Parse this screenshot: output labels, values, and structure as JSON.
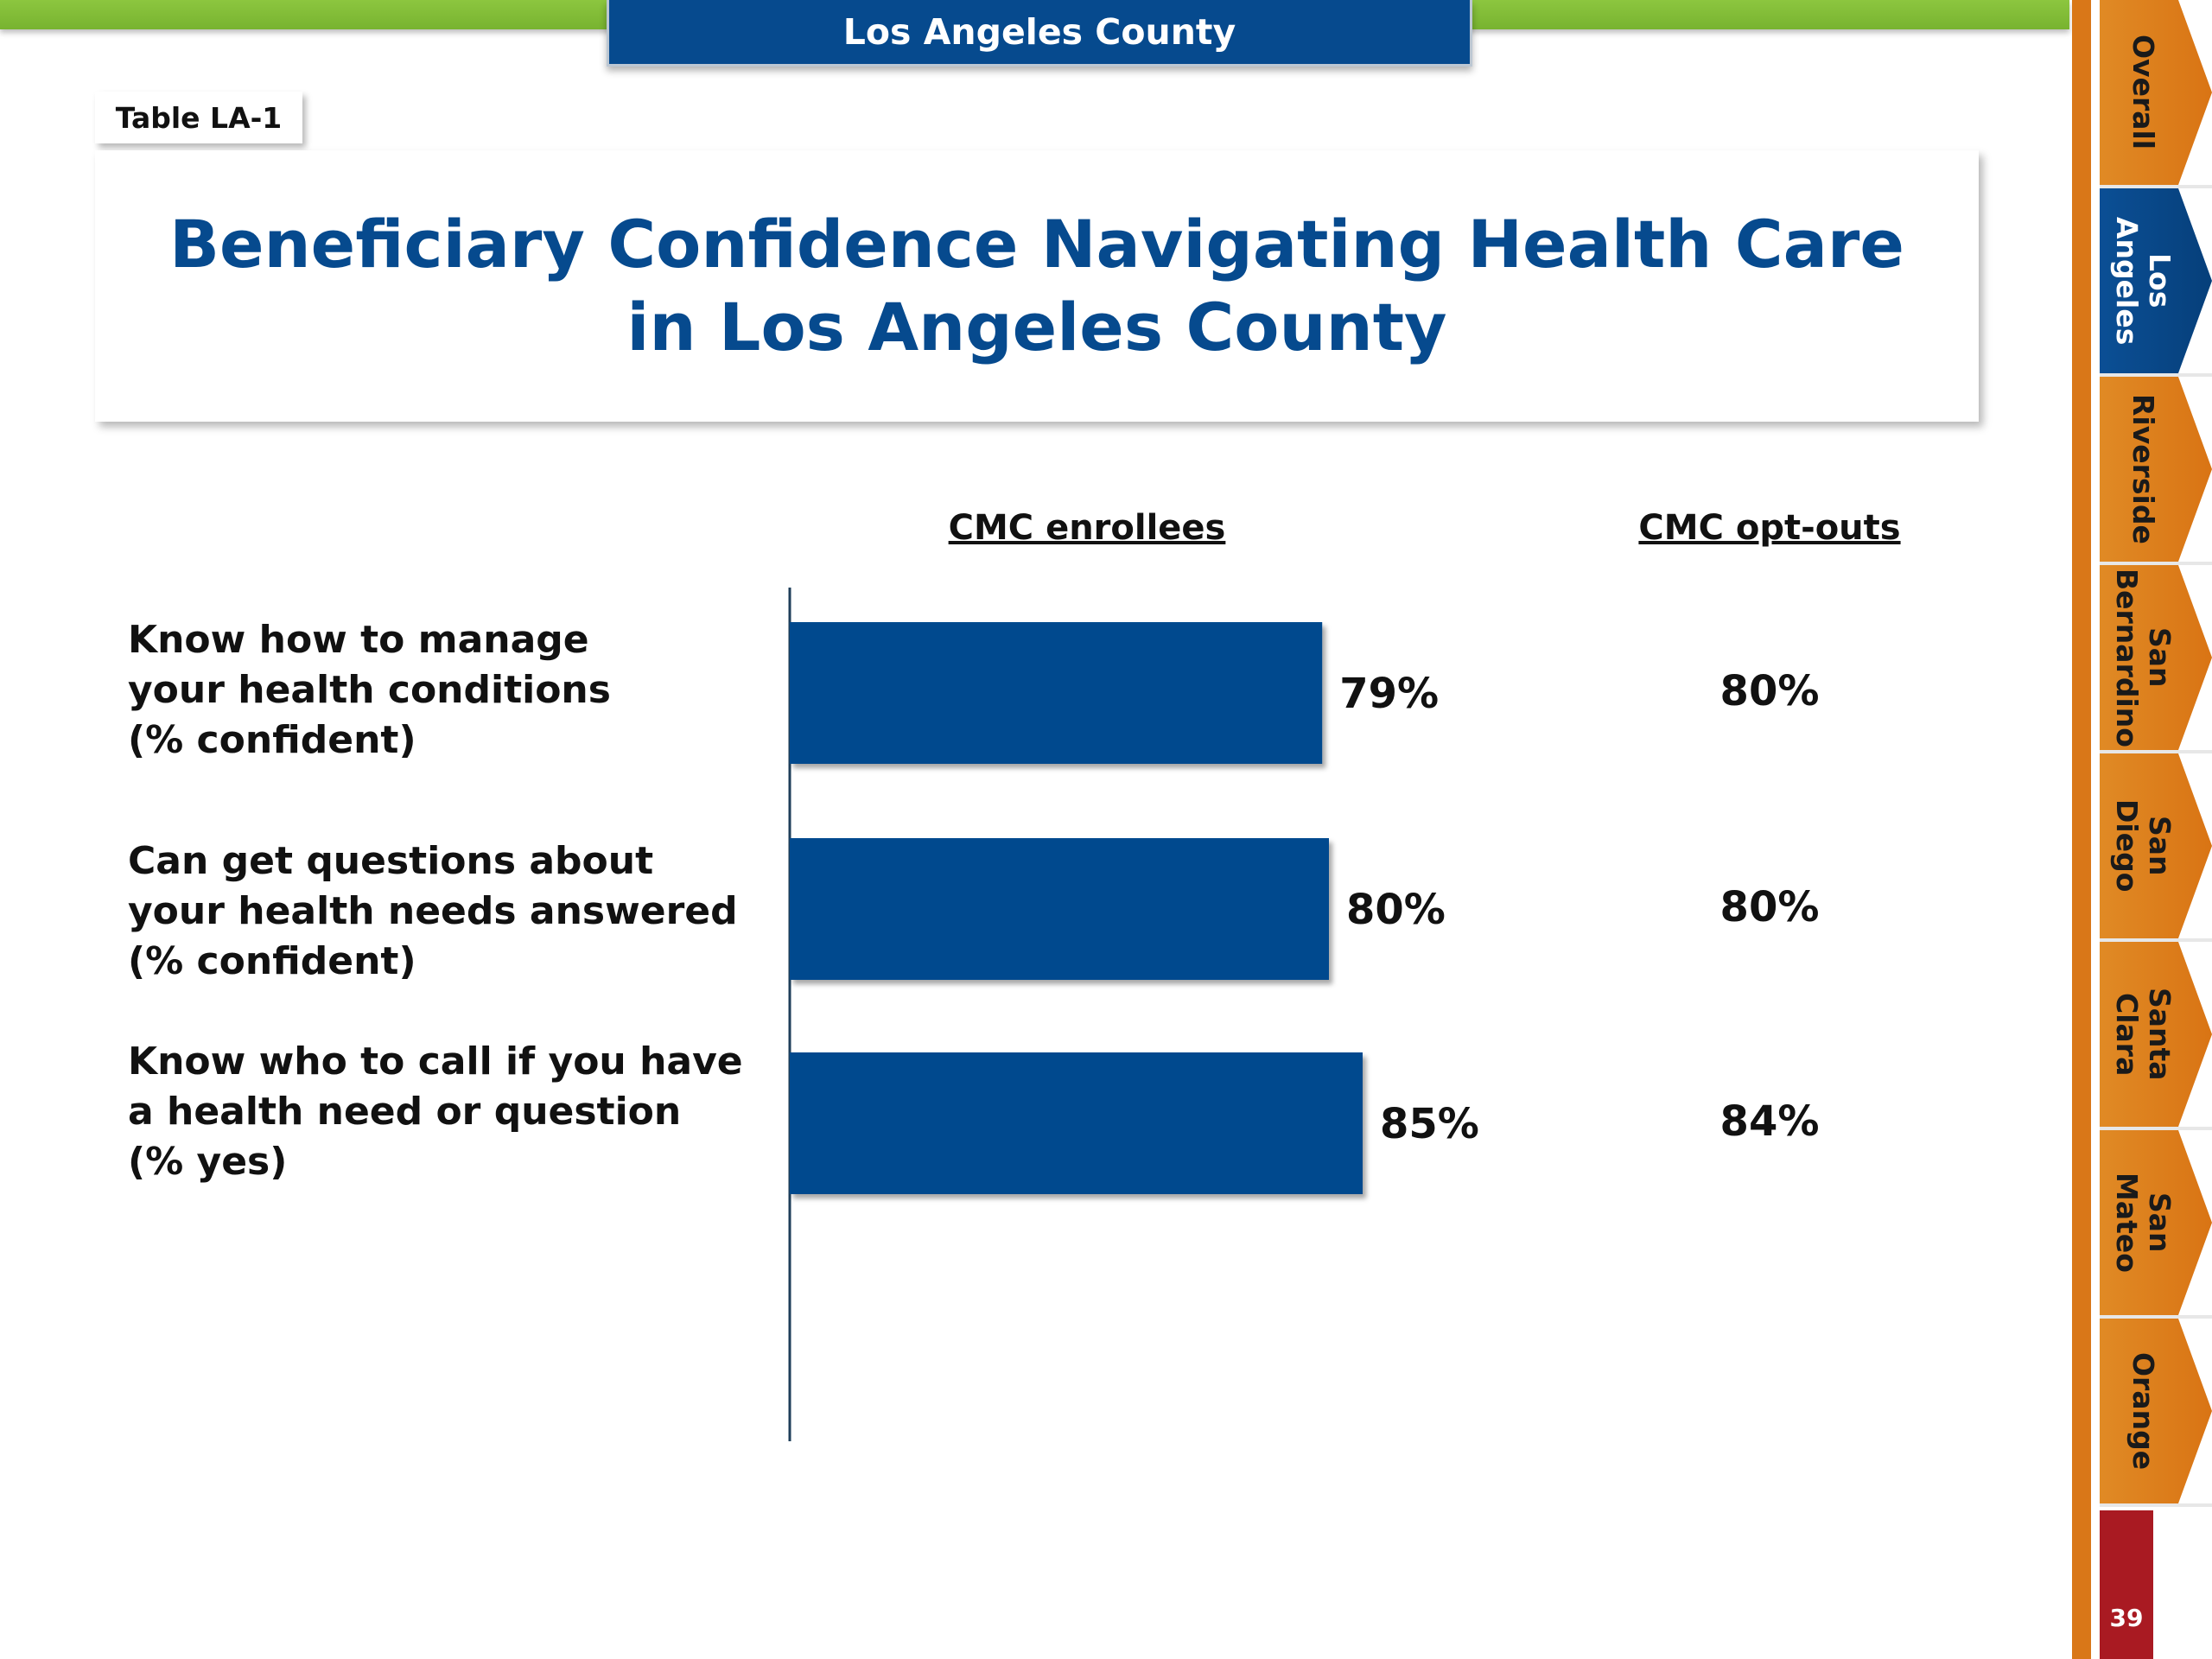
{
  "header": {
    "county_title": "Los Angeles County"
  },
  "table_label": "Table LA-1",
  "title": {
    "line1": "Beneficiary Confidence Navigating Health Care",
    "line2": "in Los Angeles County"
  },
  "columns": {
    "enrollees": "CMC enrollees",
    "optouts": "CMC opt-outs"
  },
  "rows": [
    {
      "lines": [
        "Know how to manage",
        "your health conditions",
        "(% confident)"
      ]
    },
    {
      "lines": [
        "Can get questions about",
        "your health needs answered",
        "(% confident)"
      ]
    },
    {
      "lines": [
        "Know who to call if you have",
        "a health need or question",
        "(% yes)"
      ]
    }
  ],
  "chart_data": {
    "type": "bar",
    "orientation": "horizontal",
    "categories": [
      "Know how to manage your health conditions (% confident)",
      "Can get questions about your health needs answered (% confident)",
      "Know who to call if you have a health need or question (% yes)"
    ],
    "series": [
      {
        "name": "CMC enrollees",
        "values": [
          79,
          80,
          85
        ],
        "labels": [
          "79%",
          "80%",
          "85%"
        ]
      }
    ],
    "optouts": {
      "name": "CMC opt-outs",
      "values": [
        80,
        80,
        84
      ],
      "labels": [
        "80%",
        "80%",
        "84%"
      ]
    },
    "xlim": [
      0,
      100
    ],
    "bar_color": "#064a8e",
    "grid": false
  },
  "sidebar": {
    "tabs": [
      {
        "label": "Overall",
        "active": false
      },
      {
        "label": "Los\nAngeles",
        "active": true
      },
      {
        "label": "Riverside",
        "active": false
      },
      {
        "label": "San\nBernardino",
        "active": false
      },
      {
        "label": "San\nDiego",
        "active": false
      },
      {
        "label": "Santa\nClara",
        "active": false
      },
      {
        "label": "San\nMateo",
        "active": false
      },
      {
        "label": "Orange",
        "active": false
      }
    ],
    "page_number": "39"
  },
  "colors": {
    "green": "#8cc63f",
    "navy": "#064a8e",
    "orange": "#d97718",
    "red": "#a91a22"
  }
}
